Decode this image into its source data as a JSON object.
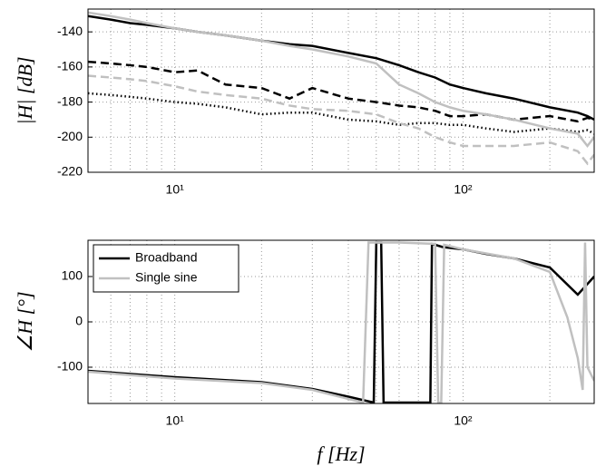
{
  "chart_data": [
    {
      "type": "line",
      "ylabel": "|H| [dB]",
      "xscale": "log",
      "grid": true,
      "xlim": [
        5,
        285
      ],
      "ylim": [
        -220,
        -127
      ],
      "xticks": [
        {
          "value": 10,
          "label": "10¹"
        },
        {
          "value": 100,
          "label": "10²"
        }
      ],
      "xminorticks": [
        6,
        7,
        8,
        9,
        20,
        30,
        40,
        50,
        60,
        70,
        80,
        90,
        200
      ],
      "yticks": [
        -220,
        -200,
        -180,
        -160,
        -140
      ],
      "x": [
        5,
        6,
        7,
        8,
        10,
        12,
        15,
        20,
        25,
        30,
        40,
        50,
        60,
        70,
        80,
        90,
        100,
        120,
        150,
        200,
        250,
        270,
        285
      ],
      "series": [
        {
          "color": "#000000",
          "dash": "solid",
          "values": [
            -131,
            -133,
            -135,
            -136,
            -138,
            -140,
            -142,
            -145,
            -147,
            -148,
            -152,
            -155,
            -159,
            -163,
            -166,
            -170,
            -172,
            -175,
            -178,
            -183,
            -186,
            -188,
            -190
          ]
        },
        {
          "color": "#000000",
          "dash": "dashed",
          "values": [
            -157,
            -158,
            -159,
            -160,
            -163,
            -162,
            -170,
            -172,
            -178,
            -172,
            -178,
            -180,
            -182,
            -183,
            -185,
            -188,
            -188,
            -187,
            -190,
            -188,
            -191,
            -189,
            -190
          ]
        },
        {
          "color": "#000000",
          "dash": "dotted",
          "values": [
            -175,
            -176,
            -177,
            -178,
            -180,
            -181,
            -183,
            -187,
            -186,
            -186,
            -190,
            -191,
            -193,
            -192,
            -192,
            -193,
            -193,
            -195,
            -197,
            -195,
            -197,
            -196,
            -198
          ]
        },
        {
          "color": "#c0c0c0",
          "dash": "solid",
          "values": [
            -129,
            -131,
            -133,
            -135,
            -138,
            -140,
            -142,
            -145,
            -148,
            -150,
            -154,
            -158,
            -170,
            -175,
            -180,
            -183,
            -185,
            -187,
            -190,
            -195,
            -198,
            -205,
            -200
          ]
        },
        {
          "color": "#c0c0c0",
          "dash": "dashed",
          "values": [
            -165,
            -166,
            -167,
            -168,
            -171,
            -174,
            -176,
            -178,
            -182,
            -184,
            -185,
            -187,
            -192,
            -195,
            -200,
            -203,
            -205,
            -205,
            -205,
            -203,
            -208,
            -215,
            -210
          ]
        }
      ]
    },
    {
      "type": "line",
      "ylabel": "∠H [°]",
      "xlabel": "f [Hz]",
      "xscale": "log",
      "grid": true,
      "legend": "upper left",
      "xlim": [
        5,
        285
      ],
      "ylim": [
        -180,
        180
      ],
      "xticks": [
        {
          "value": 10,
          "label": "10¹"
        },
        {
          "value": 100,
          "label": "10²"
        }
      ],
      "xminorticks": [
        6,
        7,
        8,
        9,
        20,
        30,
        40,
        50,
        60,
        70,
        80,
        90,
        200
      ],
      "yticks": [
        -100,
        0,
        100
      ],
      "series": [
        {
          "name": "Broadband",
          "color": "#000000",
          "x": [
            5,
            10,
            20,
            30,
            40,
            49,
            50,
            52,
            53,
            60,
            70,
            77,
            78,
            80,
            85,
            100,
            120,
            150,
            200,
            250,
            285
          ],
          "values": [
            -108,
            -122,
            -133,
            -148,
            -165,
            -178,
            175,
            175,
            -178,
            -178,
            -178,
            -178,
            172,
            170,
            165,
            160,
            150,
            140,
            120,
            60,
            100
          ]
        },
        {
          "name": "Single sine",
          "color": "#c0c0c0",
          "x": [
            5,
            10,
            20,
            30,
            40,
            45,
            47,
            60,
            80,
            82,
            84,
            86,
            100,
            150,
            200,
            230,
            250,
            260,
            265,
            270,
            285
          ],
          "values": [
            -110,
            -125,
            -135,
            -150,
            -170,
            -178,
            175,
            175,
            172,
            -178,
            -178,
            170,
            160,
            140,
            110,
            10,
            -80,
            -150,
            175,
            -100,
            -130
          ]
        }
      ]
    }
  ]
}
